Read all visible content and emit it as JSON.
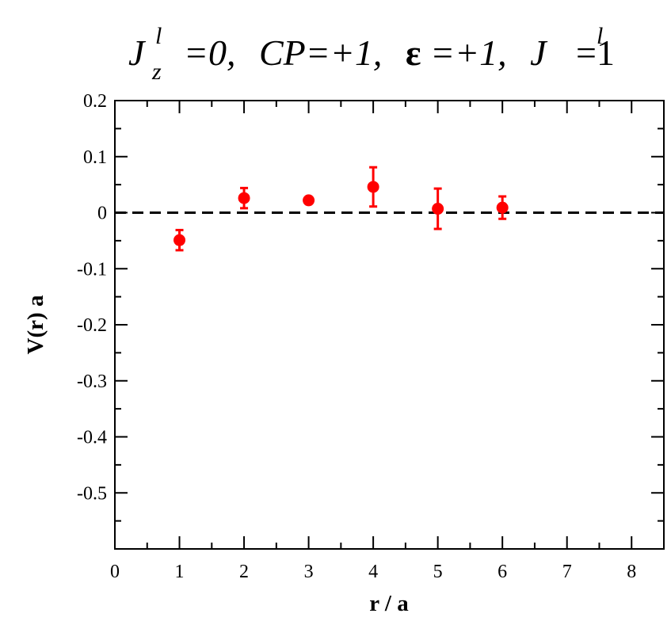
{
  "chart_data": {
    "type": "scatter",
    "title": {
      "p1_main": "J",
      "p1_sup": "l",
      "p1_sub": "z",
      "p1_rest": "=0,",
      "p2": "CP=+1,",
      "p3_eps": "ε",
      "p3_rest": "=+1,",
      "p4_main": "J",
      "p4_sup": "l",
      "p4_rest": "=1"
    },
    "xlabel": "r / a",
    "ylabel": "V(r) a",
    "xlim": [
      0,
      8.5
    ],
    "ylim": [
      -0.6,
      0.2
    ],
    "x_ticks": [
      0,
      1,
      2,
      3,
      4,
      5,
      6,
      7,
      8
    ],
    "y_ticks": [
      0.2,
      0.1,
      0,
      -0.1,
      -0.2,
      -0.3,
      -0.4,
      -0.5
    ],
    "x_tick_labels": [
      "0",
      "1",
      "2",
      "3",
      "4",
      "5",
      "6",
      "7",
      "8"
    ],
    "y_tick_labels": [
      "0.2",
      "0.1",
      "0",
      "-0.1",
      "-0.2",
      "-0.3",
      "-0.4",
      "-0.5"
    ],
    "grid": false,
    "reference_line": {
      "y": 0,
      "style": "dashed",
      "color": "#000000"
    },
    "series": [
      {
        "color": "#ff0000",
        "marker": "circle",
        "points": [
          {
            "x": 1,
            "y": -0.049,
            "err": 0.018
          },
          {
            "x": 2,
            "y": 0.026,
            "err": 0.018
          },
          {
            "x": 3,
            "y": 0.022,
            "err": 0.005
          },
          {
            "x": 4,
            "y": 0.046,
            "err": 0.035
          },
          {
            "x": 5,
            "y": 0.007,
            "err": 0.036
          },
          {
            "x": 6,
            "y": 0.009,
            "err": 0.02
          }
        ]
      }
    ]
  }
}
